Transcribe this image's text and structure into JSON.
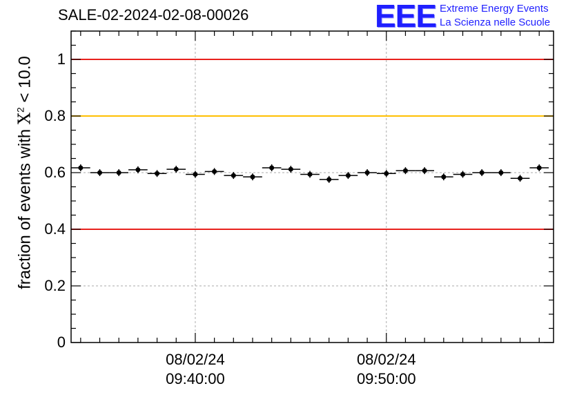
{
  "title": "SALE-02-2024-02-08-00026",
  "logo": {
    "mark": "EEE",
    "line1": "Extreme Energy Events",
    "line2": "La Scienza nelle Scuole"
  },
  "chart_data": {
    "type": "scatter",
    "ylabel_prefix": "fraction of events with ",
    "ylabel_symbol": "X",
    "ylabel_sup": "2",
    "ylabel_suffix": " < 10.0",
    "ylim": [
      0,
      1.1
    ],
    "yticks": [
      {
        "v": 0,
        "label": "0"
      },
      {
        "v": 0.2,
        "label": "0.2"
      },
      {
        "v": 0.4,
        "label": "0.4"
      },
      {
        "v": 0.6,
        "label": "0.6"
      },
      {
        "v": 0.8,
        "label": "0.8"
      },
      {
        "v": 1,
        "label": "1"
      }
    ],
    "xlim_minutes": [
      33.5,
      58.75
    ],
    "xticks": [
      {
        "minute": 40,
        "date": "08/02/24",
        "time": "09:40:00"
      },
      {
        "minute": 50,
        "date": "08/02/24",
        "time": "09:50:00"
      }
    ],
    "bin_width_minutes": 1,
    "x_minutes": [
      34,
      35,
      36,
      37,
      38,
      39,
      40,
      41,
      42,
      43,
      44,
      45,
      46,
      47,
      48,
      49,
      50,
      51,
      52,
      53,
      54,
      55,
      56,
      57,
      58
    ],
    "values": [
      0.617,
      0.6,
      0.6,
      0.61,
      0.597,
      0.612,
      0.594,
      0.604,
      0.59,
      0.585,
      0.617,
      0.612,
      0.594,
      0.576,
      0.59,
      0.6,
      0.597,
      0.607,
      0.607,
      0.585,
      0.594,
      0.6,
      0.6,
      0.58,
      0.617
    ],
    "reference_lines": [
      {
        "value": 1.0,
        "color": "#e8201c"
      },
      {
        "value": 0.8,
        "color": "#ffbf00"
      },
      {
        "value": 0.4,
        "color": "#e8201c"
      }
    ],
    "grid": true
  }
}
